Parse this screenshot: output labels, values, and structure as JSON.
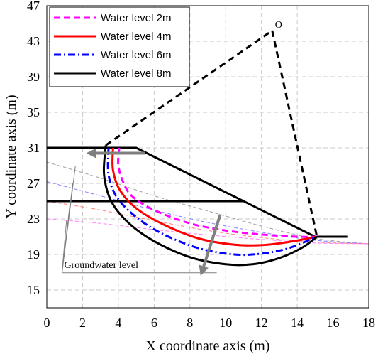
{
  "chart_data": {
    "type": "line",
    "xlabel": "X coordinate axis (m)",
    "ylabel": "Y coordinate axis  (m)",
    "xlim": [
      0,
      18
    ],
    "ylim": [
      13,
      47
    ],
    "x_ticks": [
      0,
      2,
      4,
      6,
      8,
      10,
      12,
      14,
      16,
      18
    ],
    "y_ticks": [
      15,
      19,
      23,
      27,
      31,
      35,
      39,
      43,
      47
    ],
    "grid": true,
    "grid_style": "dashed",
    "legend_position": "top-left",
    "slope_profile": [
      [
        0,
        31
      ],
      [
        5,
        31
      ],
      [
        15,
        21
      ],
      [
        16.8,
        21
      ]
    ],
    "slope_line_color": "#000000",
    "horizontal_line": {
      "x": [
        0,
        11
      ],
      "y": 25
    },
    "center_point": {
      "label": "O",
      "x": 12.6,
      "y": 44.2
    },
    "radius_lines": [
      [
        [
          3.3,
          31.3
        ],
        [
          12.6,
          44.2
        ]
      ],
      [
        [
          12.6,
          44.2
        ],
        [
          15.1,
          21
        ]
      ]
    ],
    "series": [
      {
        "name": "Water level 2m",
        "color": "#ff00ff",
        "style": "dashed",
        "points": [
          [
            4.05,
            31
          ],
          [
            4.0,
            29
          ],
          [
            4.3,
            27
          ],
          [
            4.8,
            25.5
          ],
          [
            6,
            24
          ],
          [
            8,
            22.5
          ],
          [
            10,
            21.7
          ],
          [
            12,
            21.25
          ],
          [
            14,
            21.0
          ],
          [
            15.1,
            21
          ]
        ]
      },
      {
        "name": "Water level 4m",
        "color": "#ff0000",
        "style": "solid",
        "points": [
          [
            3.7,
            31
          ],
          [
            3.7,
            28.5
          ],
          [
            4.1,
            26.2
          ],
          [
            5,
            24.2
          ],
          [
            6.5,
            22.4
          ],
          [
            8.5,
            20.8
          ],
          [
            10.5,
            20.1
          ],
          [
            12,
            20.05
          ],
          [
            13.5,
            20.4
          ],
          [
            15.1,
            21
          ]
        ]
      },
      {
        "name": "Water level 6m",
        "color": "#0000ff",
        "style": "dashdot",
        "points": [
          [
            3.45,
            31
          ],
          [
            3.45,
            28
          ],
          [
            3.9,
            25.5
          ],
          [
            5,
            23.2
          ],
          [
            6.5,
            21.3
          ],
          [
            8.5,
            19.7
          ],
          [
            10.5,
            19.0
          ],
          [
            12,
            19.1
          ],
          [
            13.5,
            19.7
          ],
          [
            15.1,
            21
          ]
        ]
      },
      {
        "name": "Water level 8m",
        "color": "#000000",
        "style": "solid",
        "points": [
          [
            3.3,
            31.3
          ],
          [
            3.2,
            28
          ],
          [
            3.6,
            25
          ],
          [
            4.6,
            22.5
          ],
          [
            6,
            20.5
          ],
          [
            8,
            18.7
          ],
          [
            10,
            17.9
          ],
          [
            11.5,
            17.9
          ],
          [
            13,
            18.6
          ],
          [
            14.3,
            19.8
          ],
          [
            15.1,
            21
          ]
        ]
      }
    ],
    "groundwater_lines": [
      {
        "color": "#a0a0a0",
        "points": [
          [
            0,
            29.4
          ],
          [
            3,
            27.6
          ],
          [
            6,
            25.6
          ],
          [
            9,
            23.9
          ],
          [
            12,
            22.2
          ],
          [
            15,
            20.8
          ],
          [
            18,
            20.2
          ]
        ]
      },
      {
        "color": "#8080ff",
        "points": [
          [
            0,
            27.2
          ],
          [
            3,
            25.6
          ],
          [
            6,
            24.0
          ],
          [
            9,
            22.6
          ],
          [
            12,
            21.5
          ],
          [
            15,
            20.6
          ],
          [
            18,
            20.2
          ]
        ]
      },
      {
        "color": "#ff8080",
        "points": [
          [
            0,
            25.0
          ],
          [
            3,
            24.0
          ],
          [
            6,
            22.8
          ],
          [
            9,
            21.7
          ],
          [
            12,
            20.9
          ],
          [
            15,
            20.4
          ],
          [
            18,
            20.2
          ]
        ]
      },
      {
        "color": "#ff80ff",
        "points": [
          [
            0,
            23.0
          ],
          [
            3,
            22.5
          ],
          [
            6,
            21.8
          ],
          [
            9,
            21.2
          ],
          [
            12,
            20.7
          ],
          [
            15,
            20.3
          ],
          [
            18,
            20.2
          ]
        ]
      }
    ],
    "groundwater_label": "Groundwater level",
    "groundwater_label_pos": [
      0.85,
      17.9
    ],
    "groundwater_pointer_targets": [
      [
        1.6,
        29
      ],
      [
        1.45,
        27
      ],
      [
        1.3,
        24.8
      ],
      [
        1.1,
        22.8
      ]
    ],
    "arrows": [
      {
        "from": [
          5.5,
          30.4
        ],
        "to": [
          2.2,
          30.4
        ],
        "color": "#808080"
      },
      {
        "from": [
          9.7,
          23.5
        ],
        "to": [
          8.6,
          16.6
        ],
        "color": "#808080"
      }
    ]
  }
}
